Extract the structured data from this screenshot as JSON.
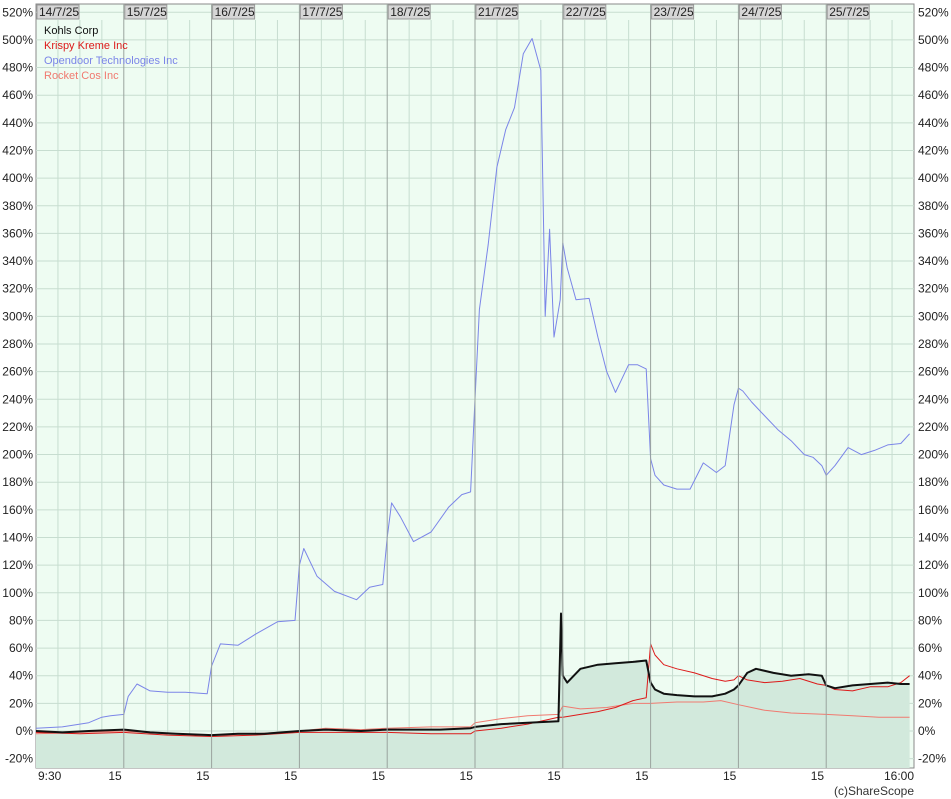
{
  "credit": "(c)ShareScope",
  "colors": {
    "plot_bg": "#eefcf2",
    "area_fill": "#d2e9dc",
    "grid": "#c7ddd0",
    "day_line": "#9aa39e",
    "tab_bg": "#d6d6d6",
    "axis_bg": "#ffffff"
  },
  "chart_data": {
    "type": "line",
    "ylim": [
      -22,
      525
    ],
    "yticks": [
      -20,
      0,
      20,
      40,
      60,
      80,
      100,
      120,
      140,
      160,
      180,
      200,
      220,
      240,
      260,
      280,
      300,
      320,
      340,
      360,
      380,
      400,
      420,
      440,
      460,
      480,
      500,
      520
    ],
    "ytick_labels": [
      "-20%",
      "0%",
      "20%",
      "40%",
      "60%",
      "80%",
      "100%",
      "120%",
      "140%",
      "160%",
      "180%",
      "200%",
      "220%",
      "240%",
      "260%",
      "280%",
      "300%",
      "320%",
      "340%",
      "360%",
      "380%",
      "400%",
      "420%",
      "440%",
      "460%",
      "480%",
      "500%",
      "520%"
    ],
    "days": [
      "14/7/25",
      "15/7/25",
      "16/7/25",
      "17/7/25",
      "18/7/25",
      "21/7/25",
      "22/7/25",
      "23/7/25",
      "24/7/25",
      "25/7/25"
    ],
    "xtick_labels": [
      "9:30",
      "15",
      "15",
      "15",
      "15",
      "15",
      "15",
      "15",
      "15",
      "15",
      "16:00"
    ],
    "xlim": [
      0,
      10
    ],
    "series": [
      {
        "name": "Opendoor Technologies Inc",
        "color": "#7b85e8",
        "x": [
          0,
          0.3,
          0.6,
          0.75,
          0.85,
          1.0,
          1.05,
          1.15,
          1.3,
          1.5,
          1.7,
          1.95,
          2.0,
          2.1,
          2.3,
          2.5,
          2.75,
          2.95,
          3.0,
          3.05,
          3.2,
          3.4,
          3.65,
          3.8,
          3.95,
          4.0,
          4.05,
          4.15,
          4.3,
          4.5,
          4.7,
          4.85,
          4.95,
          5.0,
          5.05,
          5.15,
          5.25,
          5.35,
          5.45,
          5.55,
          5.65,
          5.75,
          5.8,
          5.85,
          5.9,
          5.97,
          6.0,
          6.05,
          6.15,
          6.3,
          6.4,
          6.5,
          6.6,
          6.75,
          6.85,
          6.95,
          7.0,
          7.05,
          7.15,
          7.3,
          7.45,
          7.6,
          7.75,
          7.85,
          7.95,
          8.0,
          8.05,
          8.15,
          8.3,
          8.45,
          8.6,
          8.75,
          8.85,
          8.95,
          9.0,
          9.1,
          9.25,
          9.4,
          9.55,
          9.7,
          9.85,
          9.95
        ],
        "values": [
          2,
          3,
          6,
          10,
          11,
          12,
          25,
          34,
          29,
          28,
          28,
          27,
          47,
          63,
          62,
          70,
          79,
          80,
          120,
          132,
          112,
          101,
          95,
          104,
          106,
          140,
          165,
          155,
          137,
          144,
          162,
          171,
          173,
          240,
          305,
          352,
          408,
          435,
          451,
          490,
          501,
          478,
          300,
          363,
          285,
          312,
          353,
          335,
          312,
          313,
          285,
          260,
          245,
          265,
          265,
          262,
          197,
          185,
          178,
          175,
          175,
          194,
          187,
          192,
          236,
          248,
          246,
          238,
          228,
          218,
          210,
          200,
          198,
          192,
          185,
          192,
          205,
          200,
          203,
          207,
          208,
          215
        ]
      },
      {
        "name": "Rocket Cos Inc",
        "color": "#f07a70",
        "x": [
          0,
          0.5,
          1.0,
          1.5,
          2.0,
          2.5,
          3.0,
          3.3,
          3.7,
          4.0,
          4.5,
          4.95,
          5.0,
          5.3,
          5.6,
          5.95,
          6.0,
          6.2,
          6.5,
          6.8,
          7.0,
          7.3,
          7.6,
          7.8,
          8.0,
          8.3,
          8.6,
          9.0,
          9.3,
          9.6,
          9.95
        ],
        "values": [
          -2,
          -1,
          0,
          -2,
          -3,
          -2,
          0,
          2,
          1,
          2,
          3,
          3,
          6,
          9,
          11,
          12,
          18,
          16,
          17,
          20,
          20,
          21,
          21,
          22,
          19,
          15,
          13,
          12,
          11,
          10,
          10
        ]
      },
      {
        "name": "Krispy Kreme Inc",
        "color": "#dd1a1a",
        "x": [
          0,
          0.5,
          1.0,
          1.5,
          2.0,
          2.5,
          3.0,
          3.5,
          4.0,
          4.5,
          4.95,
          5.0,
          5.3,
          5.6,
          5.95,
          6.0,
          6.2,
          6.4,
          6.6,
          6.8,
          6.95,
          7.0,
          7.05,
          7.15,
          7.3,
          7.5,
          7.7,
          7.85,
          7.95,
          8.0,
          8.1,
          8.3,
          8.5,
          8.7,
          8.9,
          9.0,
          9.1,
          9.3,
          9.5,
          9.7,
          9.85,
          9.95
        ],
        "values": [
          -1,
          -2,
          -1,
          -3,
          -4,
          -3,
          -1,
          -1,
          -1,
          -2,
          -2,
          0,
          2,
          5,
          10,
          10,
          12,
          14,
          17,
          22,
          24,
          63,
          55,
          48,
          45,
          42,
          38,
          36,
          37,
          40,
          37,
          35,
          36,
          38,
          34,
          33,
          30,
          29,
          32,
          32,
          35,
          40
        ]
      },
      {
        "name": "Kohls Corp",
        "color": "#111111",
        "x": [
          0,
          0.3,
          0.6,
          1.0,
          1.3,
          1.6,
          2.0,
          2.3,
          2.6,
          3.0,
          3.3,
          3.7,
          4.0,
          4.3,
          4.6,
          4.95,
          5.0,
          5.3,
          5.6,
          5.95,
          5.98,
          6.0,
          6.02,
          6.05,
          6.2,
          6.4,
          6.6,
          6.8,
          6.95,
          7.0,
          7.05,
          7.15,
          7.3,
          7.5,
          7.7,
          7.85,
          7.95,
          8.0,
          8.1,
          8.2,
          8.4,
          8.6,
          8.8,
          8.95,
          9.0,
          9.1,
          9.3,
          9.5,
          9.7,
          9.85,
          9.95
        ],
        "values": [
          0,
          -1,
          0,
          1,
          -1,
          -2,
          -3,
          -2,
          -2,
          0,
          1,
          0,
          1,
          1,
          1,
          2,
          3,
          5,
          6,
          7,
          85,
          40,
          38,
          35,
          45,
          48,
          49,
          50,
          51,
          35,
          30,
          27,
          26,
          25,
          25,
          27,
          30,
          33,
          42,
          45,
          42,
          40,
          41,
          40,
          33,
          31,
          33,
          34,
          35,
          34,
          34
        ]
      }
    ],
    "legend_order": [
      "Kohls Corp",
      "Krispy Kreme Inc",
      "Opendoor Technologies Inc",
      "Rocket Cos Inc"
    ],
    "legend_position": "top-left",
    "area_series": "Kohls Corp",
    "grid": true
  }
}
